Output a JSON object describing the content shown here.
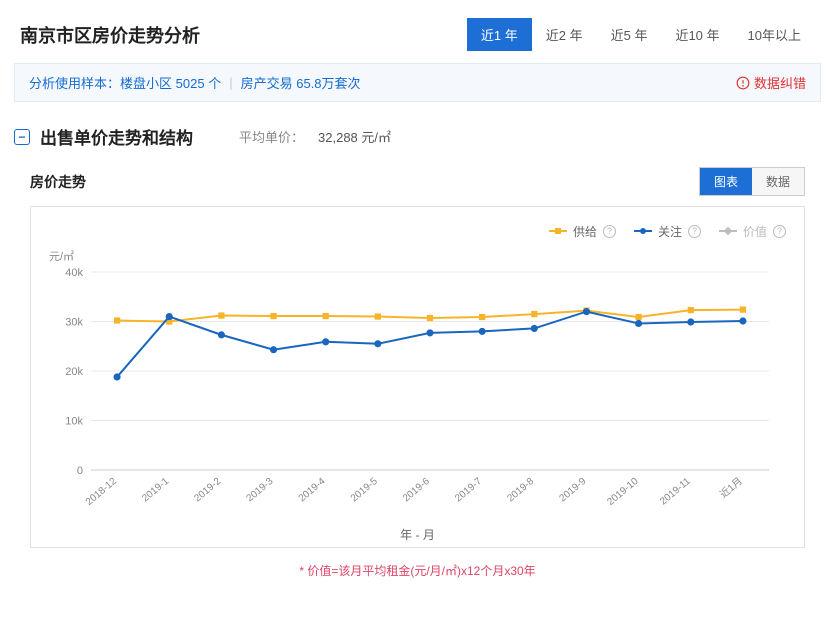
{
  "page_title": "南京市区房价走势分析",
  "period_tabs": [
    {
      "label": "近1 年",
      "active": true
    },
    {
      "label": "近2 年",
      "active": false
    },
    {
      "label": "近5 年",
      "active": false
    },
    {
      "label": "近10 年",
      "active": false
    },
    {
      "label": "10年以上",
      "active": false
    }
  ],
  "info_banner": {
    "prefix": "分析使用样本：",
    "sample_label": "楼盘小区",
    "sample_count": "5025 个",
    "separator": "|",
    "trans_label": "房产交易",
    "trans_count": "65.8万套次",
    "report_link": "数据纠错"
  },
  "section": {
    "title": "出售单价走势和结构",
    "avg_label": "平均单价：",
    "avg_value": "32,288 元/㎡"
  },
  "chart_block": {
    "title": "房价走势",
    "view_tabs": [
      {
        "label": "图表",
        "active": true
      },
      {
        "label": "数据",
        "active": false
      }
    ]
  },
  "chart": {
    "type": "line",
    "y_axis_title": "元/㎡",
    "x_axis_title": "年 - 月",
    "ylim": [
      0,
      40000
    ],
    "ytick_step": 10000,
    "ytick_labels": [
      "0",
      "10k",
      "20k",
      "30k",
      "40k"
    ],
    "grid_color": "#e8e8e8",
    "axis_color": "#cccccc",
    "background_color": "#ffffff",
    "categories": [
      "2018-12",
      "2019-1",
      "2019-2",
      "2019-3",
      "2019-4",
      "2019-5",
      "2019-6",
      "2019-7",
      "2019-8",
      "2019-9",
      "2019-10",
      "2019-11",
      "近1月"
    ],
    "legend": [
      {
        "name": "供给",
        "color": "#f6b42b",
        "marker": "square"
      },
      {
        "name": "关注",
        "color": "#1966c0",
        "marker": "circle"
      },
      {
        "name": "价值",
        "color": "#bdbdbd",
        "marker": "diamond",
        "disabled": true
      }
    ],
    "series": [
      {
        "name": "供给",
        "color": "#f6b42b",
        "marker": "square",
        "line_width": 2,
        "marker_size": 5,
        "values": [
          30200,
          30000,
          31200,
          31100,
          31100,
          31000,
          30700,
          30900,
          31500,
          32200,
          30900,
          32300,
          32400
        ]
      },
      {
        "name": "关注",
        "color": "#1966c0",
        "marker": "circle",
        "line_width": 2,
        "marker_size": 5,
        "values": [
          18800,
          31000,
          27300,
          24300,
          25900,
          25500,
          27700,
          28000,
          28600,
          32000,
          29600,
          29900,
          30100
        ]
      }
    ]
  },
  "footnote": "* 价值=该月平均租金(元/月/㎡)x12个月x30年"
}
